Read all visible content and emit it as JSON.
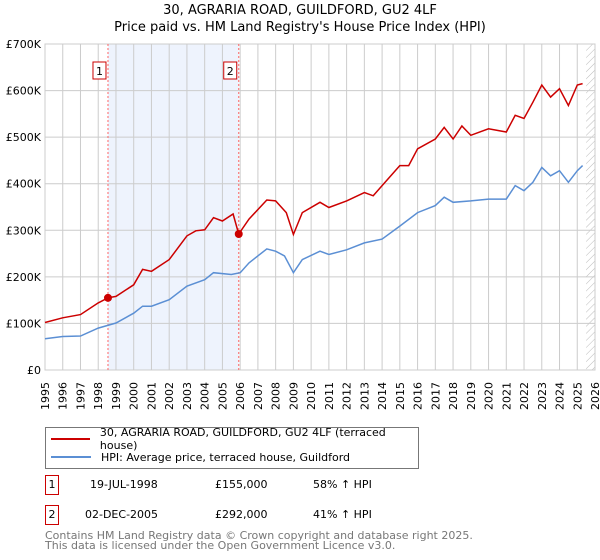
{
  "title_line1": "30, AGRARIA ROAD, GUILDFORD, GU2 4LF",
  "title_line2": "Price paid vs. HM Land Registry's House Price Index (HPI)",
  "chart_data": {
    "type": "line",
    "title": "30, AGRARIA ROAD, GUILDFORD, GU2 4LF — Price paid vs. HM Land Registry's House Price Index (HPI)",
    "xlim": [
      1995,
      2026
    ],
    "ylim": [
      0,
      700000
    ],
    "x_ticks": [
      "1995",
      "1996",
      "1997",
      "1998",
      "1999",
      "2000",
      "2001",
      "2002",
      "2003",
      "2004",
      "2005",
      "2006",
      "2007",
      "2008",
      "2009",
      "2010",
      "2011",
      "2012",
      "2013",
      "2014",
      "2015",
      "2016",
      "2017",
      "2018",
      "2019",
      "2020",
      "2021",
      "2022",
      "2023",
      "2024",
      "2025",
      "2026"
    ],
    "y_ticks": [
      {
        "value": 0,
        "label": "£0"
      },
      {
        "value": 100000,
        "label": "£100K"
      },
      {
        "value": 200000,
        "label": "£200K"
      },
      {
        "value": 300000,
        "label": "£300K"
      },
      {
        "value": 400000,
        "label": "£400K"
      },
      {
        "value": 500000,
        "label": "£500K"
      },
      {
        "value": 600000,
        "label": "£600K"
      },
      {
        "value": 700000,
        "label": "£700K"
      }
    ],
    "grid": true,
    "shaded_range": [
      1998.55,
      2005.92
    ],
    "future_hatch_from": 2025.5,
    "series": [
      {
        "name": "30, AGRARIA ROAD, GUILDFORD, GU2 4LF (terraced house)",
        "color": "#cc0000",
        "x": [
          1995,
          1996,
          1997,
          1998,
          1998.55,
          1999,
          2000,
          2000.5,
          2001,
          2002,
          2003,
          2003.5,
          2004,
          2004.5,
          2005,
          2005.6,
          2005.92,
          2006.5,
          2007.5,
          2008,
          2008.6,
          2009,
          2009.5,
          2010.5,
          2011,
          2012,
          2013,
          2013.5,
          2014,
          2015,
          2015.5,
          2016,
          2017,
          2017.5,
          2018,
          2018.5,
          2019,
          2020,
          2021,
          2021.5,
          2022,
          2022.5,
          2023,
          2023.5,
          2024,
          2024.5,
          2025,
          2025.3
        ],
        "y": [
          102000,
          112000,
          119000,
          144000,
          155000,
          158000,
          183000,
          216000,
          212000,
          237000,
          288000,
          299000,
          301000,
          327000,
          320000,
          335000,
          292000,
          324000,
          365000,
          363000,
          338000,
          291000,
          338000,
          360000,
          349000,
          363000,
          381000,
          374000,
          396000,
          439000,
          439000,
          475000,
          496000,
          521000,
          496000,
          524000,
          504000,
          518000,
          511000,
          547000,
          540000,
          575000,
          612000,
          586000,
          604000,
          568000,
          612000,
          615000
        ]
      },
      {
        "name": "HPI: Average price, terraced house, Guildford",
        "color": "#5b8fd4",
        "x": [
          1995,
          1996,
          1997,
          1998,
          1999,
          2000,
          2000.5,
          2001,
          2002,
          2003,
          2004,
          2004.5,
          2005.5,
          2006,
          2006.5,
          2007.5,
          2008,
          2008.5,
          2009,
          2009.5,
          2010.5,
          2011,
          2012,
          2013,
          2014,
          2015,
          2016,
          2017,
          2017.5,
          2018,
          2019,
          2020,
          2021,
          2021.5,
          2022,
          2022.5,
          2023,
          2023.5,
          2024,
          2024.5,
          2025,
          2025.3
        ],
        "y": [
          67000,
          72000,
          73000,
          90000,
          101000,
          122000,
          137000,
          137000,
          151000,
          180000,
          194000,
          209000,
          205000,
          209000,
          230000,
          260000,
          255000,
          245000,
          209000,
          237000,
          255000,
          248000,
          258000,
          273000,
          281000,
          309000,
          338000,
          353000,
          371000,
          360000,
          363000,
          367000,
          367000,
          396000,
          385000,
          403000,
          435000,
          417000,
          428000,
          403000,
          428000,
          439000
        ]
      }
    ],
    "sales": [
      {
        "label": "1",
        "x": 1998.55,
        "y": 155000
      },
      {
        "label": "2",
        "x": 2005.92,
        "y": 292000
      }
    ]
  },
  "legend": {
    "item1": "30, AGRARIA ROAD, GUILDFORD, GU2 4LF (terraced house)",
    "item2": "HPI: Average price, terraced house, Guildford"
  },
  "transactions": [
    {
      "num": "1",
      "date": "19-JUL-1998",
      "price": "£155,000",
      "hpi": "58% ↑ HPI"
    },
    {
      "num": "2",
      "date": "02-DEC-2005",
      "price": "£292,000",
      "hpi": "41% ↑ HPI"
    }
  ],
  "footer_line1": "Contains HM Land Registry data © Crown copyright and database right 2025.",
  "footer_line2": "This data is licensed under the Open Government Licence v3.0."
}
